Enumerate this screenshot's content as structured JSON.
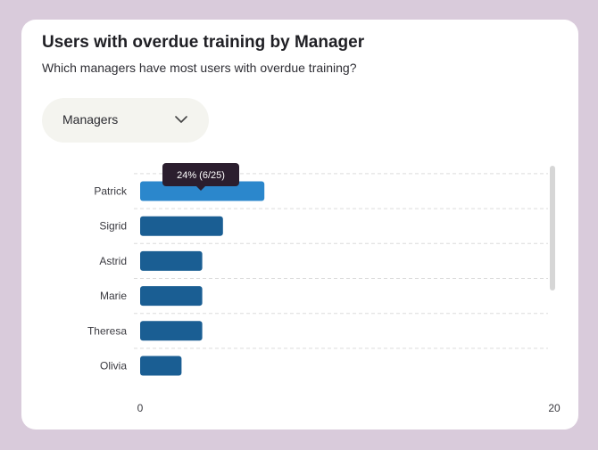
{
  "card": {
    "title": "Users with overdue training by Manager",
    "subtitle": "Which managers have most users with overdue training?"
  },
  "dropdown": {
    "selected": "Managers",
    "icon": "chevron-down-icon"
  },
  "colors": {
    "bar": "#1a5e93",
    "bar_highlight": "#2b87cc",
    "tooltip_bg": "#2b1e2e",
    "grid": "#dcdcdc",
    "background": "#d9cbdb"
  },
  "chart_data": {
    "type": "bar",
    "orientation": "horizontal",
    "categories": [
      "Patrick",
      "Sigrid",
      "Astrid",
      "Marie",
      "Theresa",
      "Olivia"
    ],
    "values": [
      6,
      4,
      3,
      3,
      3,
      2
    ],
    "xlim": [
      0,
      20
    ],
    "x_ticks": [
      "0",
      "20"
    ],
    "grid": true,
    "highlighted_index": 0,
    "tooltip": "24% (6/25)"
  }
}
